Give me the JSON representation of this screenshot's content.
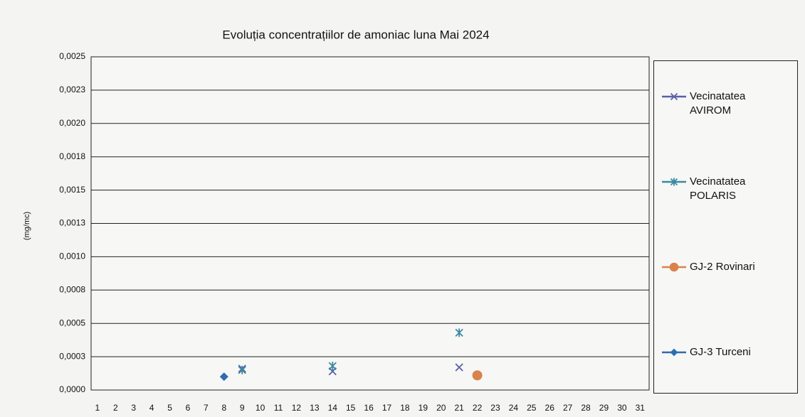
{
  "chart_data": {
    "type": "line",
    "title": "Evoluția concentrațiilor de amoniac luna Mai 2024",
    "y_label": "(mg/mc)",
    "x": [
      1,
      2,
      3,
      4,
      5,
      6,
      7,
      8,
      9,
      10,
      11,
      12,
      13,
      14,
      15,
      16,
      17,
      18,
      19,
      20,
      21,
      22,
      23,
      24,
      25,
      26,
      27,
      28,
      29,
      30,
      31
    ],
    "xlim": [
      0.65,
      31.5
    ],
    "ylim": [
      0,
      0.0025
    ],
    "yticks": [
      {
        "value": 0,
        "label": "0,0000"
      },
      {
        "value": 0.00025,
        "label": "0,0003"
      },
      {
        "value": 0.0005,
        "label": "0,0005"
      },
      {
        "value": 0.00075,
        "label": "0,0008"
      },
      {
        "value": 0.001,
        "label": "0,0010"
      },
      {
        "value": 0.00125,
        "label": "0,0013"
      },
      {
        "value": 0.0015,
        "label": "0,0015"
      },
      {
        "value": 0.00175,
        "label": "0,0018"
      },
      {
        "value": 0.002,
        "label": "0,0020"
      },
      {
        "value": 0.00225,
        "label": "0,0023"
      },
      {
        "value": 0.0025,
        "label": "0,0025"
      }
    ],
    "grid": true,
    "legend": "right",
    "series": [
      {
        "name": "Vecinatatea AVIROM",
        "color": "#5a5fa8",
        "marker": "x",
        "values": [
          null,
          null,
          null,
          null,
          null,
          null,
          null,
          null,
          0.00016,
          null,
          null,
          null,
          null,
          0.00014,
          null,
          null,
          null,
          null,
          null,
          null,
          0.00017,
          null,
          null,
          null,
          null,
          null,
          null,
          null,
          null,
          null,
          null
        ]
      },
      {
        "name": "Vecinatatea POLARIS",
        "color": "#3a8aa0",
        "marker": "asterisk",
        "values": [
          null,
          null,
          null,
          null,
          null,
          null,
          null,
          null,
          0.00015,
          null,
          null,
          null,
          null,
          0.00018,
          null,
          null,
          null,
          null,
          null,
          null,
          0.00043,
          null,
          null,
          null,
          null,
          null,
          null,
          null,
          null,
          null,
          null
        ]
      },
      {
        "name": "GJ-2 Rovinari",
        "color": "#d9824c",
        "marker": "circle",
        "values": [
          null,
          null,
          null,
          null,
          null,
          null,
          null,
          null,
          null,
          null,
          null,
          null,
          null,
          null,
          null,
          null,
          null,
          null,
          null,
          null,
          null,
          0.00011,
          null,
          null,
          null,
          null,
          null,
          null,
          null,
          null,
          null
        ]
      },
      {
        "name": "GJ-3 Turceni",
        "color": "#2f6cb2",
        "marker": "diamond",
        "values": [
          null,
          null,
          null,
          null,
          null,
          null,
          null,
          0.0001,
          null,
          null,
          null,
          null,
          null,
          null,
          null,
          null,
          null,
          null,
          null,
          null,
          null,
          null,
          null,
          null,
          null,
          null,
          null,
          null,
          null,
          null,
          null
        ]
      }
    ]
  }
}
